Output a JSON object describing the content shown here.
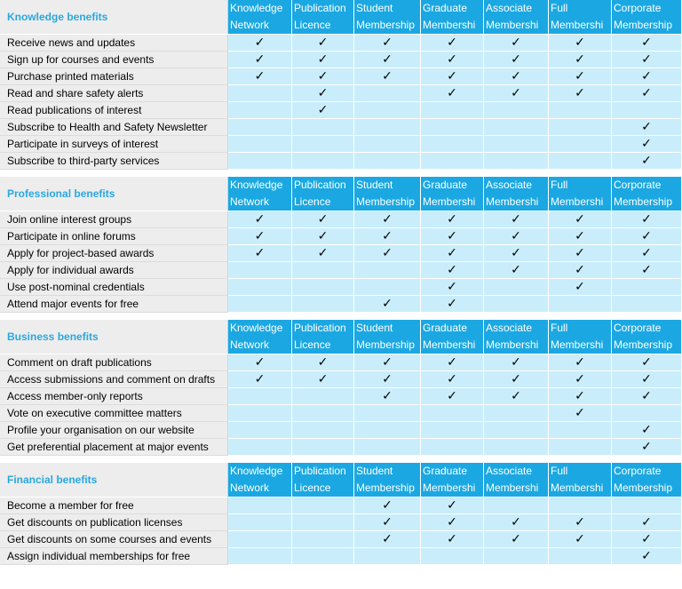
{
  "columns": [
    "Knowledge\nNetwork",
    "Publication\nLicence",
    "Student\nMembership",
    "Graduate\nMembershi",
    "Associate\nMembershi",
    "Full\nMembershi",
    "Corporate\nMembership"
  ],
  "check_symbol": "✓",
  "colors": {
    "header_bg": "#1ba8e2",
    "cell_bg": "#c9edfb",
    "section_title": "#29a8e0",
    "label_bg": "#ededed"
  },
  "sections": [
    {
      "title": "Knowledge benefits",
      "rows": [
        {
          "label": "Receive news and updates",
          "checks": [
            1,
            1,
            1,
            1,
            1,
            1,
            1
          ]
        },
        {
          "label": "Sign up for courses and events",
          "checks": [
            1,
            1,
            1,
            1,
            1,
            1,
            1
          ]
        },
        {
          "label": "Purchase printed materials",
          "checks": [
            1,
            1,
            1,
            1,
            1,
            1,
            1
          ]
        },
        {
          "label": "Read and share safety alerts",
          "checks": [
            0,
            1,
            0,
            1,
            1,
            1,
            1
          ]
        },
        {
          "label": "Read publications of interest",
          "checks": [
            0,
            1,
            0,
            0,
            0,
            0,
            0
          ]
        },
        {
          "label": "Subscribe to Health and Safety Newsletter",
          "checks": [
            0,
            0,
            0,
            0,
            0,
            0,
            1
          ]
        },
        {
          "label": "Participate in surveys of interest",
          "checks": [
            0,
            0,
            0,
            0,
            0,
            0,
            1
          ]
        },
        {
          "label": "Subscribe to third-party services",
          "checks": [
            0,
            0,
            0,
            0,
            0,
            0,
            1
          ]
        }
      ]
    },
    {
      "title": "Professional benefits",
      "rows": [
        {
          "label": "Join online interest groups",
          "checks": [
            1,
            1,
            1,
            1,
            1,
            1,
            1
          ]
        },
        {
          "label": "Participate in online forums",
          "checks": [
            1,
            1,
            1,
            1,
            1,
            1,
            1
          ]
        },
        {
          "label": "Apply for project-based awards",
          "checks": [
            1,
            1,
            1,
            1,
            1,
            1,
            1
          ]
        },
        {
          "label": "Apply for individual awards",
          "checks": [
            0,
            0,
            0,
            1,
            1,
            1,
            1
          ]
        },
        {
          "label": "Use post-nominal credentials",
          "checks": [
            0,
            0,
            0,
            1,
            0,
            1,
            0
          ]
        },
        {
          "label": "Attend major events for free",
          "checks": [
            0,
            0,
            1,
            1,
            0,
            0,
            0
          ]
        }
      ]
    },
    {
      "title": "Business benefits",
      "rows": [
        {
          "label": "Comment on draft publications",
          "checks": [
            1,
            1,
            1,
            1,
            1,
            1,
            1
          ]
        },
        {
          "label": "Access submissions and comment on drafts",
          "checks": [
            1,
            1,
            1,
            1,
            1,
            1,
            1
          ]
        },
        {
          "label": "Access member-only reports",
          "checks": [
            0,
            0,
            1,
            1,
            1,
            1,
            1
          ]
        },
        {
          "label": "Vote on executive committee matters",
          "checks": [
            0,
            0,
            0,
            0,
            0,
            1,
            0
          ]
        },
        {
          "label": "Profile your organisation on our website",
          "checks": [
            0,
            0,
            0,
            0,
            0,
            0,
            1
          ]
        },
        {
          "label": "Get preferential placement at major events",
          "checks": [
            0,
            0,
            0,
            0,
            0,
            0,
            1
          ]
        }
      ]
    },
    {
      "title": "Financial benefits",
      "rows": [
        {
          "label": "Become a member for free",
          "checks": [
            0,
            0,
            1,
            1,
            0,
            0,
            0
          ]
        },
        {
          "label": "Get discounts on publication licenses",
          "checks": [
            0,
            0,
            1,
            1,
            1,
            1,
            1
          ]
        },
        {
          "label": "Get discounts on some courses and events",
          "checks": [
            0,
            0,
            1,
            1,
            1,
            1,
            1
          ]
        },
        {
          "label": "Assign individual memberships for free",
          "checks": [
            0,
            0,
            0,
            0,
            0,
            0,
            1
          ]
        }
      ]
    }
  ]
}
